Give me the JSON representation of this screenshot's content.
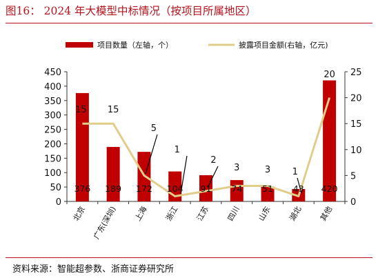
{
  "header": {
    "title": "图16：  2024 年大模型中标情况（按项目所属地区）"
  },
  "footer": {
    "source": "资料来源：智能超参数、浙商证券研究所"
  },
  "chart_data": {
    "type": "bar",
    "categories": [
      "北京",
      "广东(深圳)",
      "上海",
      "浙江",
      "江苏",
      "四川",
      "山东",
      "湖北",
      "其他"
    ],
    "series": [
      {
        "name": "项目数量（左轴，个）",
        "type": "bar",
        "axis": "left",
        "color": "#c00000",
        "values": [
          376,
          189,
          172,
          104,
          91,
          74,
          51,
          43,
          420
        ]
      },
      {
        "name": "披露项目金额(右轴，亿元)",
        "type": "line",
        "axis": "right",
        "color": "#e2cc8a",
        "values": [
          15,
          15,
          5,
          1,
          2,
          3,
          3,
          1,
          20
        ]
      }
    ],
    "bar_labels": [
      "376",
      "189",
      "172",
      "104",
      "91",
      "74",
      "51",
      "43",
      "420"
    ],
    "line_labels": [
      "15",
      "15",
      "5",
      "1",
      "2",
      "3",
      "3",
      "1",
      "20"
    ],
    "ylim_left": [
      0,
      450
    ],
    "ylim_right": [
      0,
      25
    ],
    "yticks_left": [
      "0",
      "50",
      "100",
      "150",
      "200",
      "250",
      "300",
      "350",
      "400",
      "450"
    ],
    "yticks_right": [
      "0",
      "5",
      "10",
      "15",
      "20",
      "25"
    ],
    "legend_position": "top",
    "grid": false
  }
}
